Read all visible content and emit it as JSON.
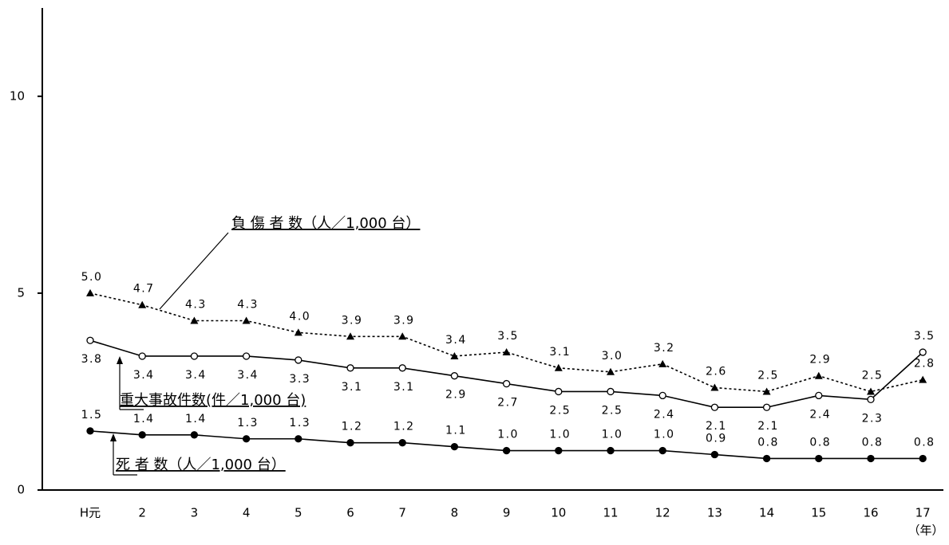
{
  "chart_data": {
    "type": "line",
    "categories": [
      "H元",
      "2",
      "3",
      "4",
      "5",
      "6",
      "7",
      "8",
      "9",
      "10",
      "11",
      "12",
      "13",
      "14",
      "15",
      "16",
      "17"
    ],
    "x_label": "（年）",
    "ylim": [
      0,
      12
    ],
    "yticks": [
      0,
      5,
      10
    ],
    "series": [
      {
        "name": "負 傷 者 数（人／1,000 台）",
        "color": "#000000",
        "style": "dotted",
        "marker": "triangle",
        "values": [
          5.0,
          4.7,
          4.3,
          4.3,
          4.0,
          3.9,
          3.9,
          3.4,
          3.5,
          3.1,
          3.0,
          3.2,
          2.6,
          2.5,
          2.9,
          2.5,
          2.8
        ],
        "value_labels": [
          "5.0",
          "4.7",
          "4.3",
          "4.3",
          "4.0",
          "3.9",
          "3.9",
          "3.4",
          "3.5",
          "3.1",
          "3.0",
          "3.2",
          "2.6",
          "2.5",
          "2.9",
          "2.5",
          "2.8"
        ]
      },
      {
        "name": "重大事故件数(件／1,000 台)",
        "color": "#000000",
        "style": "solid",
        "marker": "open-circle",
        "values": [
          3.8,
          3.4,
          3.4,
          3.4,
          3.3,
          3.1,
          3.1,
          2.9,
          2.7,
          2.5,
          2.5,
          2.4,
          2.1,
          2.1,
          2.4,
          2.3,
          3.5
        ],
        "value_labels": [
          "3.8",
          "3.4",
          "3.4",
          "3.4",
          "3.3",
          "3.1",
          "3.1",
          "2.9",
          "2.7",
          "2.5",
          "2.5",
          "2.4",
          "2.1",
          "2.1",
          "2.4",
          "2.3",
          "3.5"
        ]
      },
      {
        "name": "死 者 数（人／1,000 台）",
        "color": "#000000",
        "style": "solid",
        "marker": "circle",
        "values": [
          1.5,
          1.4,
          1.4,
          1.3,
          1.3,
          1.2,
          1.2,
          1.1,
          1.0,
          1.0,
          1.0,
          1.0,
          0.9,
          0.8,
          0.8,
          0.8,
          0.8
        ],
        "value_labels": [
          "1.5",
          "1.4",
          "1.4",
          "1.3",
          "1.3",
          "1.2",
          "1.2",
          "1.1",
          "1.0",
          "1.0",
          "1.0",
          "1.0",
          "0.9",
          "0.8",
          "0.8",
          "0.8",
          "0.8"
        ]
      }
    ]
  }
}
